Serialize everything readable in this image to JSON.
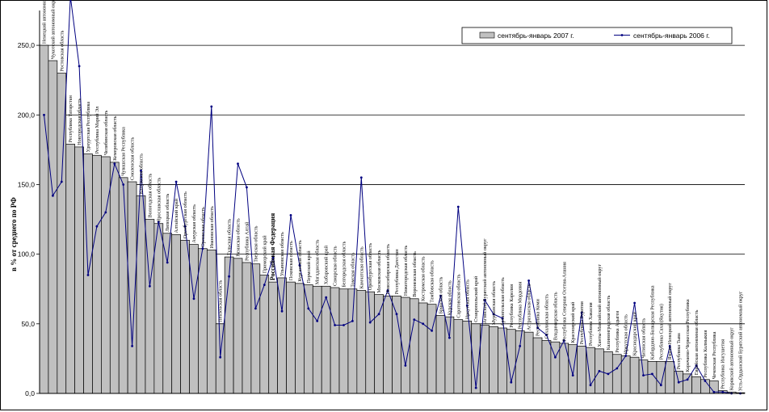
{
  "chart_data": {
    "type": "bar",
    "ylabel": "в % от среднего по РФ",
    "ylim": [
      0,
      275
    ],
    "yticks": [
      "0,0",
      "50,0",
      "100,0",
      "150,0",
      "200,0",
      "250,0"
    ],
    "ytick_values": [
      0,
      50,
      100,
      150,
      200,
      250
    ],
    "grid": true,
    "legend_position": "top-right",
    "highlight_category": "Российская Федерация",
    "categories": [
      "Ненецкий автономный округ",
      "Чукотский автономный округ",
      "Ростовская область",
      "Республика Татарстан",
      "Новгородская область",
      "Удмуртская Республика",
      "Республика Марий Эл",
      "Челябинская область",
      "Кемеровская область",
      "Чувашская Республика",
      "Смоленская область",
      "Калужская область",
      "Вологодская область",
      "Ярославская область",
      "Липецкая область",
      "Алтайский край",
      "Оренбургская область",
      "Амурская область",
      "Орловская область",
      "Ивановская область",
      "Пензенская область",
      "Тульская область",
      "Рязанская область",
      "Республика Алтай",
      "Тверская область",
      "Приморский край",
      "Российская Федерация",
      "Ульяновская область",
      "Псковская область",
      "Курганская область",
      "Пермский край",
      "Магаданская область",
      "Хабаровский край",
      "Самарская область",
      "Белгородская область",
      "Томская область",
      "Камчатская область",
      "Оренбургская область",
      "Московская область",
      "Новосибирская область",
      "Республика Дагестан",
      "Нижегородская область",
      "Воронежская область",
      "Костромская область",
      "Тамбовская область",
      "Брянская область",
      "Курская область",
      "Саратовская область",
      "Иркутская область",
      "Ставропольский край",
      "Агинский Бурятский автономный округ",
      "Мурманская область",
      "Архангельская область",
      "Республика Карелия",
      "Республика Мордовия",
      "Астраханская область",
      "Республика Коми",
      "Сахалинская область",
      "Владимирская область",
      "Республика Северная Осетия-Алания",
      "Красноярский край",
      "Республика Бурятия",
      "Республика Хакасия",
      "Ханты-Мансийский автономный округ",
      "Калининградская область",
      "Республика Адыгея",
      "Иркутская область",
      "Краснодарский край",
      "Читинская область",
      "Кабардино-Балкарская Республика",
      "Республика Саха (Якутия)",
      "Ямало-Ненецкий автономный округ",
      "Республика Тыва",
      "Карачаево-Черкесская Республика",
      "Еврейская автономная область",
      "Республика Калмыкия",
      "Чеченская Республика",
      "Республика Ингушетия",
      "Корякский автономный округ",
      "Усть-Ордынский Бурятский автономный округ"
    ],
    "series": [
      {
        "name": "сентябрь-январь 2007 г.",
        "type": "bar",
        "color": "#c0c0c0",
        "values": [
          250,
          239,
          230,
          179,
          177,
          172,
          171,
          170,
          166,
          155,
          152,
          142,
          125,
          122,
          115,
          114,
          110,
          107,
          104,
          103,
          50,
          98,
          97,
          94,
          93,
          85,
          80,
          83,
          80,
          79,
          78,
          77,
          77,
          76,
          75,
          75,
          74,
          73,
          71,
          70,
          70,
          69,
          68,
          65,
          64,
          56,
          55,
          53,
          52,
          50,
          49,
          48,
          47,
          46,
          45,
          44,
          40,
          38,
          37,
          36,
          35,
          34,
          33,
          32,
          30,
          28,
          27,
          26,
          24,
          23,
          23,
          23,
          16,
          14,
          12,
          10,
          9,
          2,
          1,
          0.5
        ]
      },
      {
        "name": "сентябрь-январь 2006 г.",
        "type": "line",
        "color": "#000080",
        "values": [
          200,
          142,
          152,
          285,
          235,
          85,
          120,
          130,
          165,
          150,
          34,
          160,
          77,
          123,
          94,
          152,
          120,
          68,
          104,
          206,
          26,
          84,
          165,
          148,
          61,
          78,
          98,
          59,
          128,
          92,
          61,
          52,
          69,
          49,
          49,
          52,
          155,
          51,
          57,
          74,
          57,
          20,
          53,
          50,
          45,
          70,
          40,
          134,
          63,
          4,
          67,
          57,
          54,
          8,
          34,
          81,
          47,
          42,
          26,
          38,
          13,
          58,
          6,
          16,
          14,
          18,
          27,
          65,
          13,
          14,
          6,
          34,
          8,
          10,
          20,
          9,
          1,
          1,
          0,
          0
        ]
      }
    ]
  }
}
